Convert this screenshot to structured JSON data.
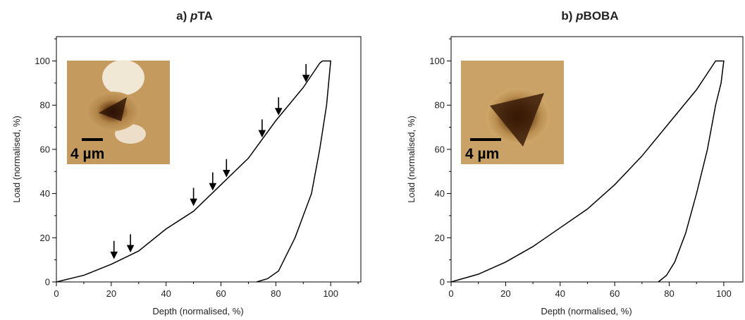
{
  "chart_data": [
    {
      "type": "line",
      "title": [
        "a) ",
        "p",
        "TA"
      ],
      "xlabel": "Depth (normalised, %)",
      "ylabel": "Load (normalised, %)",
      "x": [
        0,
        10,
        20,
        30,
        40,
        50,
        60,
        70,
        80,
        90,
        96,
        97,
        100,
        98.5,
        96,
        93,
        87,
        81,
        77,
        73
      ],
      "values": [
        0,
        3,
        8,
        14,
        24,
        32,
        44,
        56,
        73,
        88,
        99,
        100,
        100,
        80,
        60,
        40,
        20,
        5,
        1.5,
        0
      ],
      "color": "#000000",
      "pop_in_x": [
        21,
        27,
        50,
        57,
        62,
        75,
        81,
        91
      ],
      "pop_in_y": [
        9,
        12,
        33,
        40,
        46,
        64,
        74,
        89
      ],
      "inset_label": "4 µm",
      "xlim": [
        0,
        111
      ],
      "ylim": [
        0,
        111
      ],
      "xticks": [
        0,
        20,
        40,
        60,
        80,
        100
      ],
      "yticks": [
        0,
        20,
        40,
        60,
        80,
        100
      ],
      "xminorticks": [
        10,
        30,
        50,
        70,
        90,
        110
      ],
      "yminorticks": [
        10,
        30,
        50,
        70,
        90,
        110
      ]
    },
    {
      "type": "line",
      "title": [
        "b) ",
        "p",
        "BOBA"
      ],
      "xlabel": "Depth (normalised, %)",
      "ylabel": "Load (normalised, %)",
      "x": [
        0,
        10,
        20,
        30,
        40,
        50,
        60,
        70,
        80,
        90,
        97,
        100,
        99,
        97,
        94,
        90,
        86,
        82,
        79,
        76
      ],
      "values": [
        0,
        3.5,
        9,
        16,
        24.5,
        33,
        44,
        57,
        72,
        87,
        100,
        100,
        90,
        80,
        60,
        40,
        22,
        9,
        3,
        0
      ],
      "color": "#000000",
      "inset_label": "4 µm",
      "xlim": [
        0,
        107
      ],
      "ylim": [
        0,
        111
      ],
      "xticks": [
        0,
        20,
        40,
        60,
        80,
        100
      ],
      "yticks": [
        0,
        20,
        40,
        60,
        80,
        100
      ],
      "xminorticks": [
        10,
        30,
        50,
        70,
        90
      ],
      "yminorticks": [
        10,
        30,
        50,
        70,
        90,
        110
      ]
    }
  ]
}
